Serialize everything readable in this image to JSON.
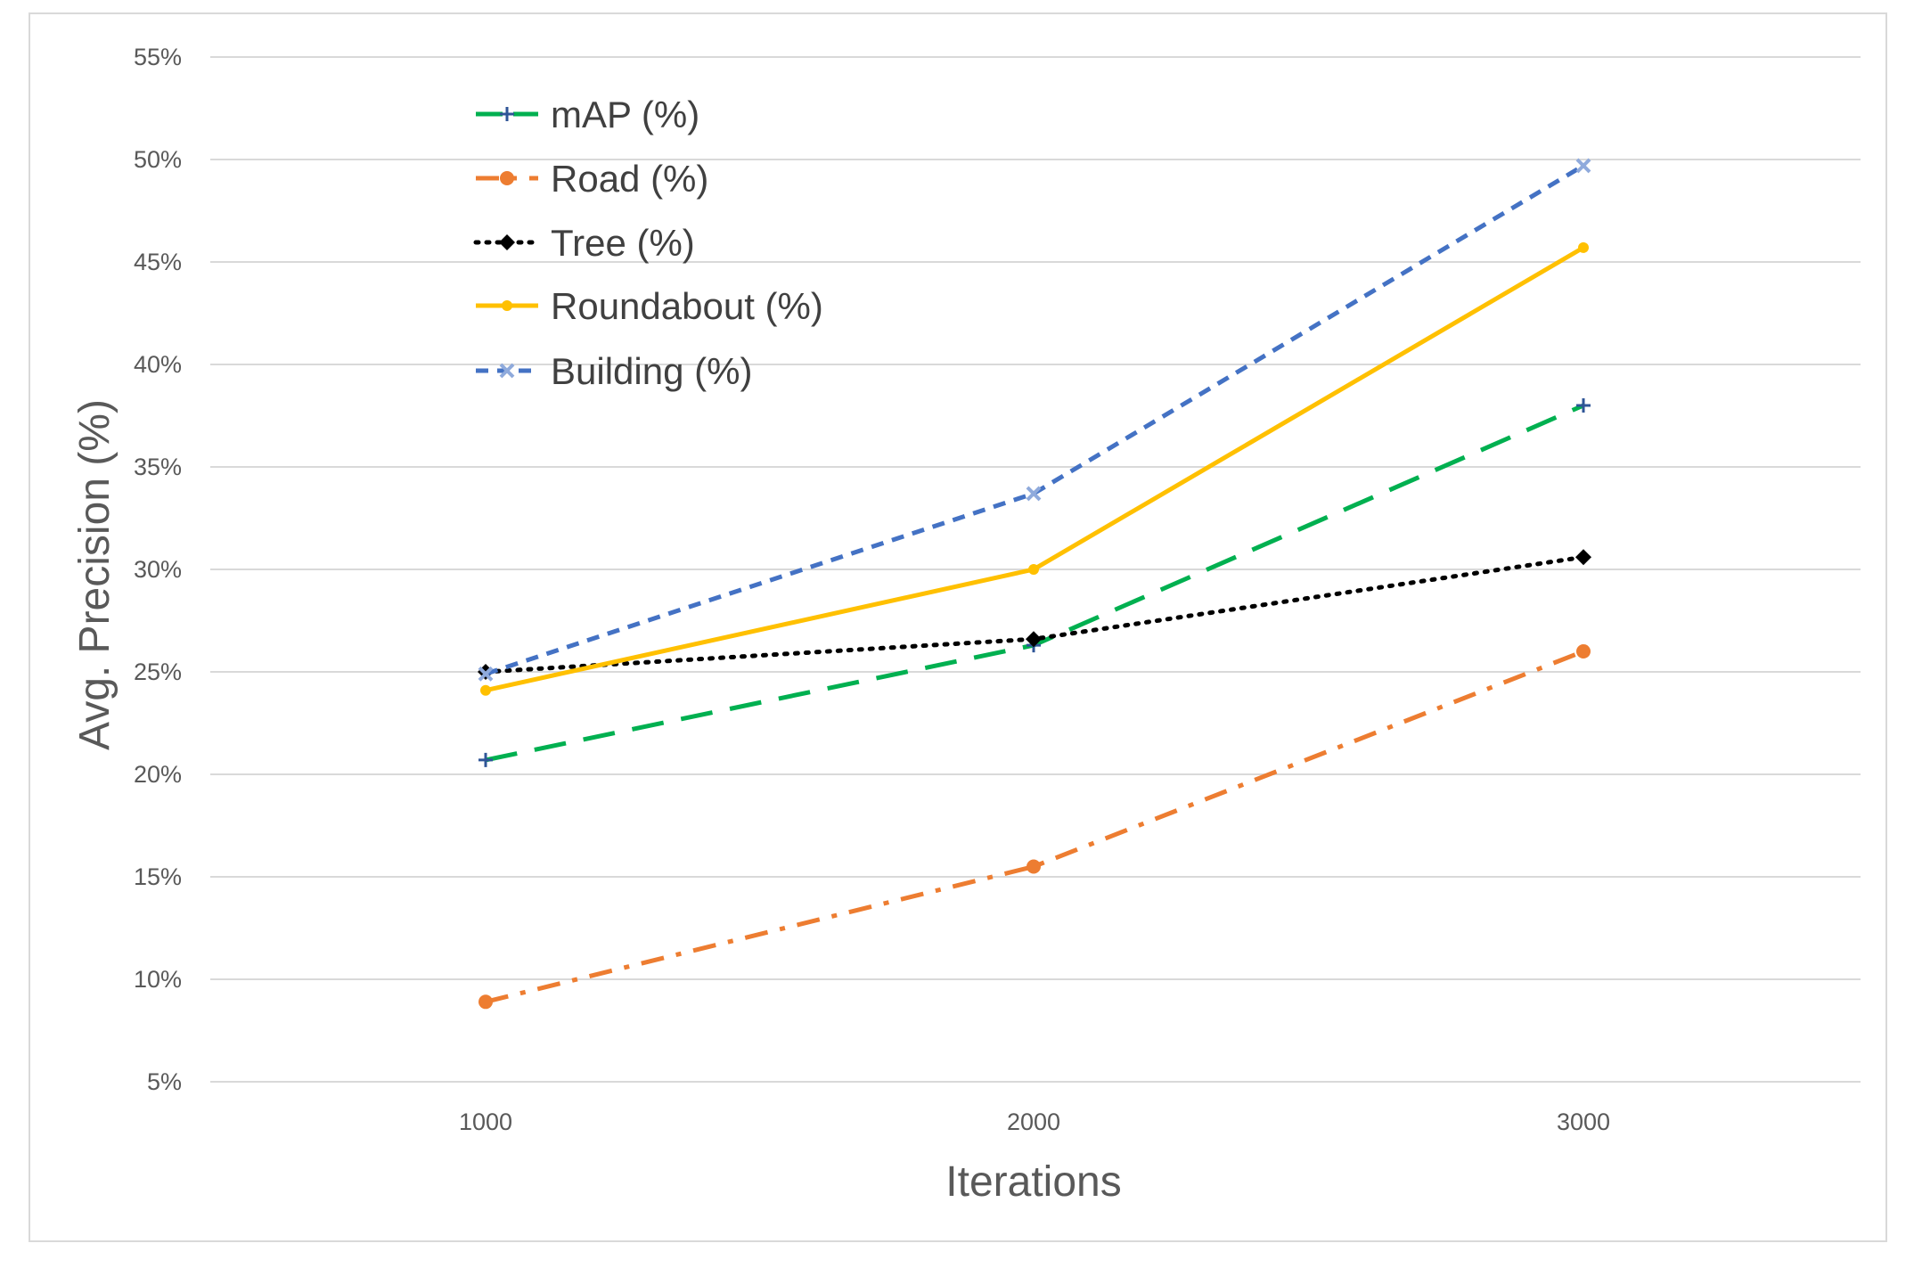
{
  "chart_data": {
    "type": "line",
    "title": "",
    "xlabel": "Iterations",
    "ylabel": "Avg. Precision (%)",
    "categories": [
      "1000",
      "2000",
      "3000"
    ],
    "x": [
      1000,
      2000,
      3000
    ],
    "ylim": [
      5,
      55
    ],
    "yticks": [
      5,
      10,
      15,
      20,
      25,
      30,
      35,
      40,
      45,
      50,
      55
    ],
    "ytick_labels": [
      "5%",
      "10%",
      "15%",
      "20%",
      "25%",
      "30%",
      "35%",
      "40%",
      "45%",
      "50%",
      "55%"
    ],
    "grid": true,
    "legend_position": "top-left",
    "series": [
      {
        "name": "mAP (%)",
        "values": [
          20.7,
          26.3,
          38.0
        ],
        "color": "#00b050",
        "style": "long-dash",
        "marker": "plus"
      },
      {
        "name": "Road (%)",
        "values": [
          8.9,
          15.5,
          26.0
        ],
        "color": "#ed7d31",
        "style": "dash-dot",
        "marker": "circle"
      },
      {
        "name": "Tree (%)",
        "values": [
          25.0,
          26.6,
          30.6
        ],
        "color": "#000000",
        "style": "dotted",
        "marker": "diamond"
      },
      {
        "name": "Roundabout (%)",
        "values": [
          24.1,
          30.0,
          45.7
        ],
        "color": "#ffc000",
        "style": "solid",
        "marker": "dot"
      },
      {
        "name": "Building (%)",
        "values": [
          24.9,
          33.7,
          49.7
        ],
        "color": "#4472c4",
        "style": "short-dash",
        "marker": "x"
      }
    ]
  }
}
